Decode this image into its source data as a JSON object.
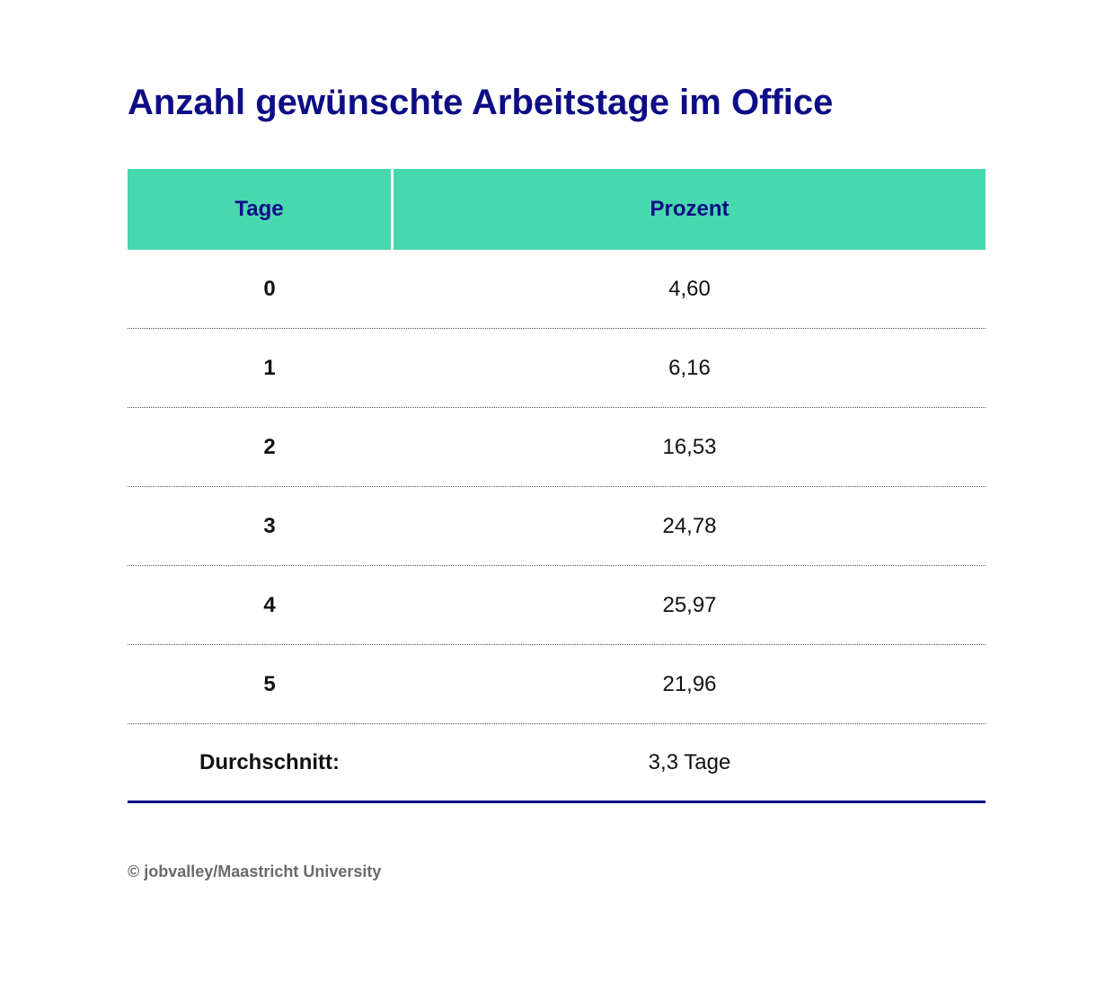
{
  "title": "Anzahl gewünschte Arbeitstage im Office",
  "table": {
    "headers": [
      "Tage",
      "Prozent"
    ],
    "rows": [
      {
        "tage": "0",
        "prozent": "4,60"
      },
      {
        "tage": "1",
        "prozent": "6,16"
      },
      {
        "tage": "2",
        "prozent": "16,53"
      },
      {
        "tage": "3",
        "prozent": "24,78"
      },
      {
        "tage": "4",
        "prozent": "25,97"
      },
      {
        "tage": "5",
        "prozent": "21,96"
      }
    ],
    "average": {
      "label": "Durchschnitt:",
      "value": "3,3 Tage"
    }
  },
  "source": "© jobvalley/Maastricht University",
  "colors": {
    "header_bg": "#48d8ae",
    "title": "#0d0d87",
    "rule": "#0d0d87"
  },
  "chart_data": {
    "type": "table",
    "title": "Anzahl gewünschte Arbeitstage im Office",
    "columns": [
      "Tage",
      "Prozent"
    ],
    "categories": [
      "0",
      "1",
      "2",
      "3",
      "4",
      "5"
    ],
    "values": [
      4.6,
      6.16,
      16.53,
      24.78,
      25.97,
      21.96
    ],
    "summary": {
      "label": "Durchschnitt",
      "value": "3,3 Tage"
    },
    "source": "© jobvalley/Maastricht University"
  }
}
